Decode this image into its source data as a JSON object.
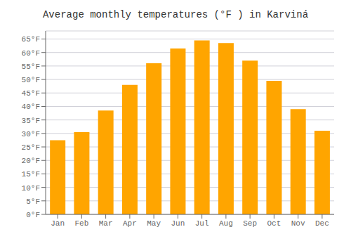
{
  "chart_data": {
    "type": "bar",
    "title": "Average monthly temperatures (°F ) in Karviná",
    "categories": [
      "Jan",
      "Feb",
      "Mar",
      "Apr",
      "May",
      "Jun",
      "Jul",
      "Aug",
      "Sep",
      "Oct",
      "Nov",
      "Dec"
    ],
    "values": [
      27.5,
      30.5,
      38.5,
      48.0,
      56.0,
      61.5,
      64.5,
      63.5,
      57.0,
      49.5,
      39.0,
      31.0
    ],
    "color": "#FFA500",
    "ylim": [
      0,
      68
    ],
    "yticks": [
      {
        "value": 0,
        "label": "0°F"
      },
      {
        "value": 5,
        "label": "5°F"
      },
      {
        "value": 10,
        "label": "10°F"
      },
      {
        "value": 15,
        "label": "15°F"
      },
      {
        "value": 20,
        "label": "20°F"
      },
      {
        "value": 25,
        "label": "25°F"
      },
      {
        "value": 30,
        "label": "30°F"
      },
      {
        "value": 35,
        "label": "35°F"
      },
      {
        "value": 40,
        "label": "40°F"
      },
      {
        "value": 45,
        "label": "45°F"
      },
      {
        "value": 50,
        "label": "50°F"
      },
      {
        "value": 55,
        "label": "55°F"
      },
      {
        "value": 60,
        "label": "60°F"
      },
      {
        "value": 65,
        "label": "65°F"
      }
    ],
    "grid": true
  }
}
